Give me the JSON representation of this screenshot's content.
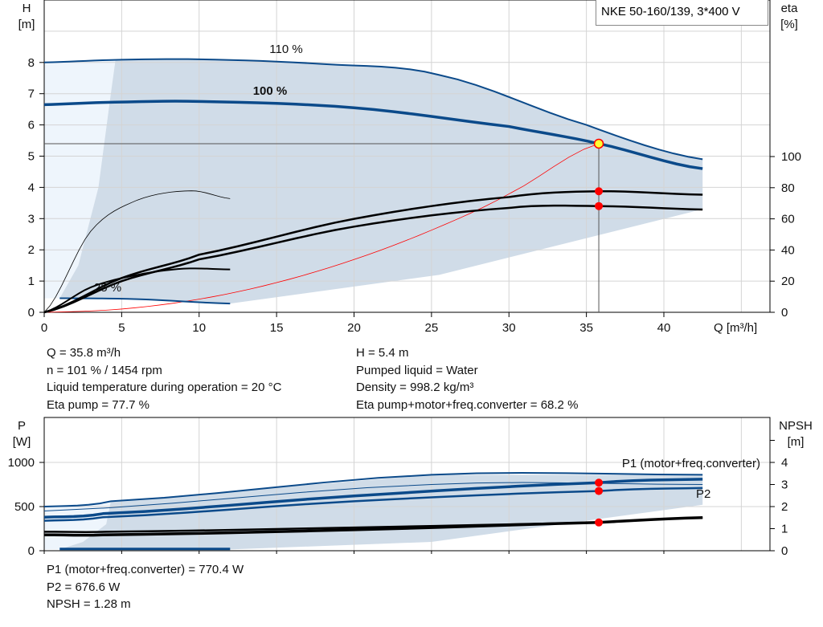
{
  "title": "NKE 50-160/139, 3*400 V",
  "chart_data": [
    {
      "type": "line",
      "name": "head-efficiency",
      "xlabel": "Q [m³/h]",
      "ylabel": "H",
      "ylabel_unit": "[m]",
      "y2label": "eta",
      "y2label_unit": "[%]",
      "xlim": [
        0,
        46.5
      ],
      "ylim": [
        0,
        10
      ],
      "y2lim": [
        0,
        200
      ],
      "xticks": [
        0,
        5,
        10,
        15,
        20,
        25,
        30,
        35,
        40
      ],
      "yticks": [
        0,
        1,
        2,
        3,
        4,
        5,
        6,
        7,
        8
      ],
      "y2ticks": [
        0,
        20,
        40,
        60,
        80,
        100
      ],
      "grid": true,
      "curve_labels": [
        "110 %",
        "100 %",
        "25 %"
      ],
      "series": [
        {
          "name": "110 %",
          "axis": "H",
          "x": [
            0,
            4.3,
            10,
            18,
            25.5,
            35,
            42.5
          ],
          "y": [
            8.0,
            8.08,
            8.1,
            7.95,
            7.6,
            6.0,
            4.9
          ]
        },
        {
          "name": "100 %",
          "axis": "H",
          "x": [
            0,
            3.8,
            10,
            20,
            30,
            35.8,
            42.5
          ],
          "y": [
            6.65,
            6.72,
            6.75,
            6.55,
            5.95,
            5.4,
            4.6
          ]
        },
        {
          "name": "25 %",
          "axis": "H",
          "x": [
            1,
            6,
            12
          ],
          "y": [
            0.45,
            0.42,
            0.28
          ]
        },
        {
          "axis": "eta",
          "x": [
            0,
            3,
            6,
            9.5,
            12
          ],
          "y": [
            0,
            52,
            72,
            78,
            73
          ]
        },
        {
          "axis": "eta",
          "x": [
            0,
            3,
            6,
            9,
            12
          ],
          "y": [
            0,
            16,
            24,
            28,
            27.5
          ]
        },
        {
          "axis": "eta",
          "x": [
            0,
            5,
            10,
            20,
            30,
            35.8,
            42.5
          ],
          "y": [
            0,
            22,
            37,
            60,
            74,
            77.7,
            75.5
          ]
        },
        {
          "axis": "eta",
          "x": [
            0,
            5,
            10,
            20,
            30,
            35.8,
            42.5
          ],
          "y": [
            0,
            20,
            34,
            55,
            67,
            68.2,
            66
          ]
        }
      ],
      "system_curve": {
        "x": [
          0,
          5,
          10,
          15,
          20,
          25,
          30,
          35.8
        ],
        "y": [
          0,
          0.105,
          0.42,
          0.95,
          1.69,
          2.63,
          3.79,
          5.4
        ]
      },
      "operating_point": {
        "Q": 35.8,
        "H": 5.4,
        "eta_pump": 77.7,
        "eta_total": 68.2
      },
      "colors": {
        "curve": "#0b4a8a",
        "area": "#d0dce8",
        "area_light": "#eef5fc",
        "system": "#ff0000",
        "point": "#ff0000",
        "op_point": "#ffff33"
      }
    },
    {
      "type": "line",
      "name": "power-npsh",
      "ylabel": "P",
      "ylabel_unit": "[W]",
      "y2label": "NPSH",
      "y2label_unit": "[m]",
      "xlim": [
        0,
        46.5
      ],
      "ylim": [
        0,
        1500
      ],
      "y2lim": [
        0,
        6
      ],
      "yticks": [
        0,
        500,
        1000
      ],
      "y2ticks": [
        0,
        1,
        2,
        3,
        4
      ],
      "grid": true,
      "curve_labels": [
        "P1 (motor+freq.converter)",
        "P2"
      ],
      "series": [
        {
          "axis": "P",
          "x": [
            0,
            4.3,
            25,
            42.5
          ],
          "y": [
            500,
            560,
            860,
            860
          ]
        },
        {
          "axis": "P",
          "x": [
            0,
            25,
            42.5
          ],
          "y": [
            450,
            750,
            750
          ]
        },
        {
          "name": "P1 (motor+freq.converter)",
          "axis": "P",
          "x": [
            0,
            3.8,
            20,
            35.8,
            42.5
          ],
          "y": [
            380,
            420,
            620,
            770.4,
            810
          ]
        },
        {
          "name": "P2",
          "axis": "P",
          "x": [
            0,
            3.8,
            20,
            35.8,
            42.5
          ],
          "y": [
            340,
            380,
            560,
            676.6,
            710
          ]
        },
        {
          "axis": "NPSH",
          "x": [
            0,
            4,
            20,
            35.8,
            42.5
          ],
          "y": [
            0.86,
            0.86,
            1.05,
            1.28,
            1.5
          ]
        },
        {
          "axis": "NPSH",
          "x": [
            0,
            3.8,
            20,
            35.8,
            42.5
          ],
          "y": [
            0.72,
            0.72,
            0.95,
            1.28,
            1.5
          ]
        },
        {
          "axis": "P",
          "x": [
            1,
            12
          ],
          "y": [
            20,
            20
          ]
        }
      ],
      "operating_point": {
        "Q": 35.8,
        "P1": 770.4,
        "P2": 676.6,
        "NPSH": 1.28
      }
    }
  ],
  "info_top": {
    "left": [
      "Q = 35.8 m³/h",
      "n = 101 % / 1454 rpm",
      "Liquid temperature during operation = 20 °C",
      "Eta pump = 77.7 %"
    ],
    "right": [
      "H = 5.4 m",
      "Pumped liquid = Water",
      "Density = 998.2 kg/m³",
      "Eta pump+motor+freq.converter = 68.2 %"
    ]
  },
  "info_bottom": [
    "P1 (motor+freq.converter) = 770.4 W",
    "P2 = 676.6 W",
    "NPSH = 1.28 m"
  ]
}
